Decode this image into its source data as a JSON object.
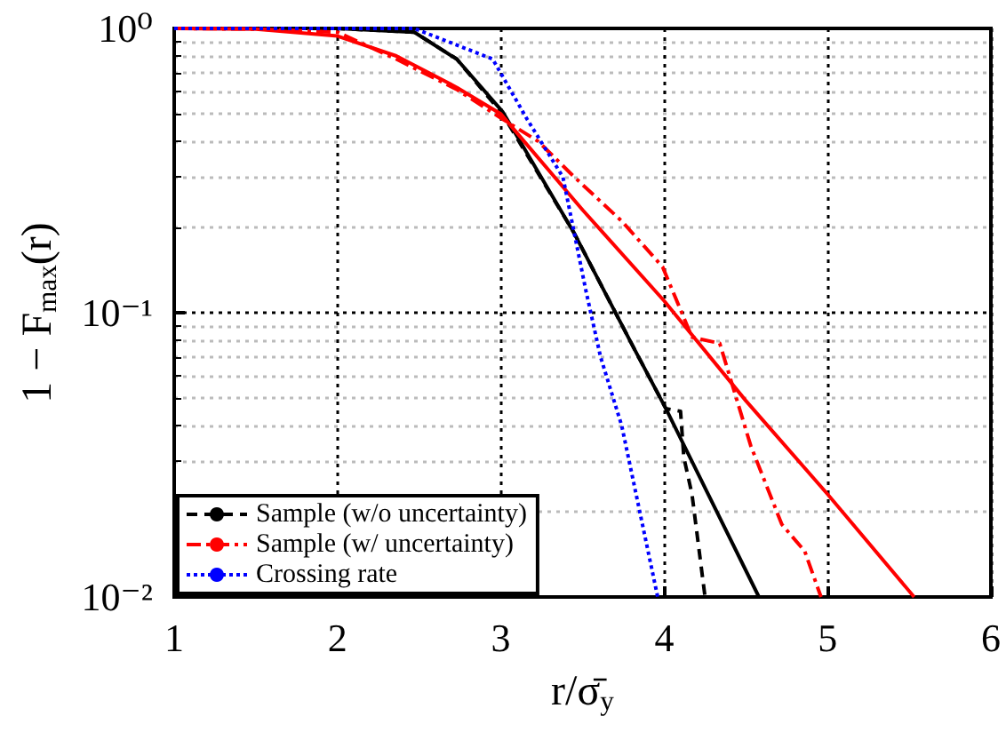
{
  "chart_data": {
    "type": "line",
    "xlabel": "r/σ̄$_{y}$",
    "ylabel": "1 − F$_{max}$(r)",
    "series": [
      {
        "name": "Sample (w/o uncertainty)",
        "color": "#000000",
        "line_style": "dashed",
        "x": [
          1,
          2.0,
          2.47,
          2.73,
          3.01,
          3.45,
          3.82,
          4.01,
          4.1,
          4.12,
          4.17,
          4.25
        ],
        "values": [
          1,
          1,
          0.97,
          0.78,
          0.5,
          0.19,
          0.074,
          0.046,
          0.045,
          0.031,
          0.023,
          0.01
        ]
      },
      {
        "color": "#000000",
        "line_style": "solid",
        "x": [
          1,
          2.0,
          2.47,
          2.73,
          3.01,
          3.45,
          3.82,
          4.01,
          4.58
        ],
        "values": [
          1,
          1,
          0.97,
          0.78,
          0.51,
          0.19,
          0.074,
          0.046,
          0.01
        ]
      },
      {
        "name": "Sample (w/ uncertainty)",
        "color": "#ff0000",
        "line_style": "dashdot",
        "x": [
          1,
          1.5,
          2.0,
          2.36,
          2.73,
          3.01,
          3.23,
          3.45,
          3.74,
          3.99,
          4.17,
          4.34,
          4.42,
          4.53,
          4.72,
          4.86,
          4.96
        ],
        "values": [
          1,
          0.995,
          0.97,
          0.78,
          0.61,
          0.48,
          0.4,
          0.3,
          0.21,
          0.145,
          0.082,
          0.078,
          0.055,
          0.034,
          0.018,
          0.0145,
          0.01
        ]
      },
      {
        "color": "#ff0000",
        "line_style": "solid",
        "x": [
          1,
          1.5,
          2.0,
          2.36,
          2.73,
          3.0,
          3.5,
          4.0,
          4.5,
          5.0,
          5.53
        ],
        "values": [
          1,
          0.995,
          0.94,
          0.8,
          0.62,
          0.5,
          0.23,
          0.11,
          0.049,
          0.023,
          0.01
        ]
      },
      {
        "name": "Crossing rate",
        "color": "#0000ff",
        "line_style": "dotted",
        "x": [
          1,
          2.0,
          2.47,
          2.95,
          3.16,
          3.38,
          3.52,
          3.61,
          3.74,
          3.96
        ],
        "values": [
          1,
          1,
          1,
          0.78,
          0.48,
          0.3,
          0.12,
          0.07,
          0.04,
          0.01
        ]
      }
    ],
    "xlim": [
      1,
      6
    ],
    "xticks": [
      1,
      2,
      3,
      4,
      5,
      6
    ],
    "ylim": [
      0.01,
      1
    ],
    "yticks": [
      {
        "value": 0.01,
        "label": "10⁻²"
      },
      {
        "value": 0.1,
        "label": "10⁻¹"
      },
      {
        "value": 1,
        "label": "10⁰"
      }
    ],
    "log": "y",
    "grid": true,
    "legend": "bottom left",
    "marker": "none"
  }
}
